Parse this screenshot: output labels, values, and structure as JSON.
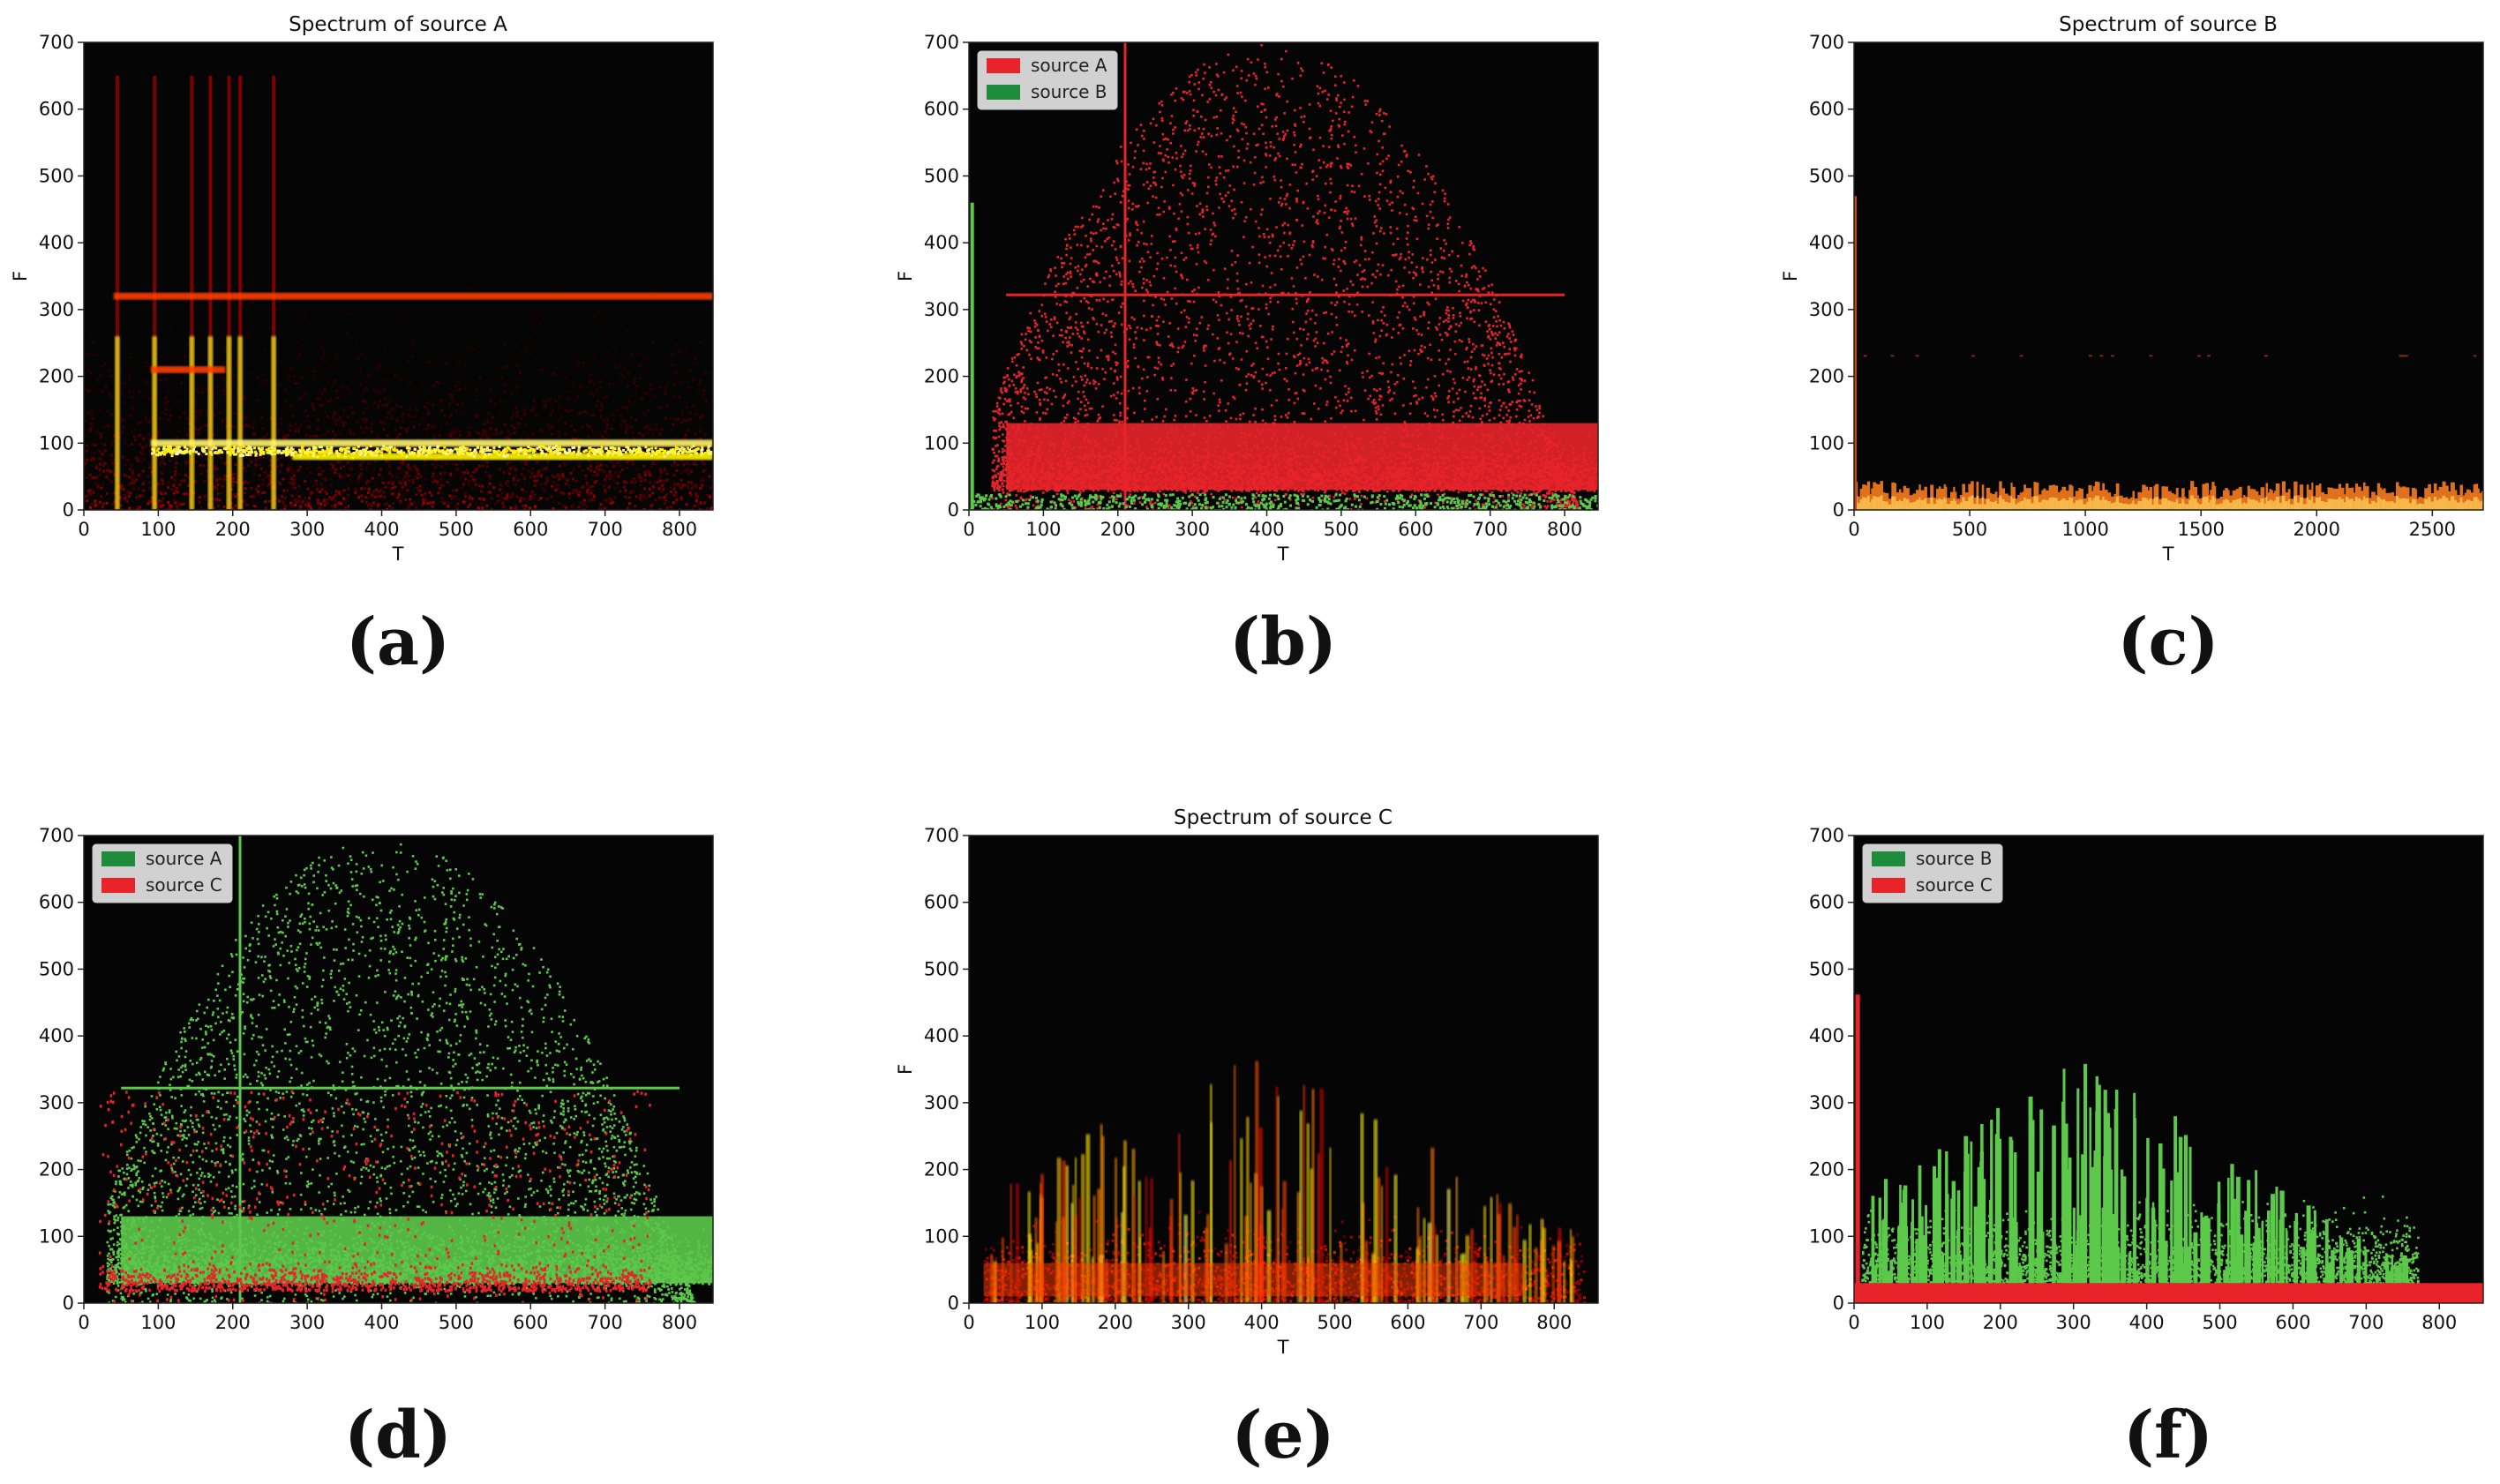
{
  "chart_data": [
    {
      "panel": "(a)",
      "type": "heatmap",
      "title": "Spectrum of source A",
      "xlabel": "T",
      "ylabel": "F",
      "xlim": [
        0,
        845
      ],
      "ylim": [
        0,
        700
      ],
      "xticks": [
        0,
        100,
        200,
        300,
        400,
        500,
        600,
        700,
        800
      ],
      "yticks": [
        0,
        100,
        200,
        300,
        400,
        500,
        600,
        700
      ],
      "colormap": "hot",
      "features": {
        "bands": [
          {
            "y": 100,
            "x_from": 90,
            "x_to": 845,
            "intensity": 0.9
          },
          {
            "y": 80,
            "x_from": 280,
            "x_to": 845,
            "intensity": 0.75
          },
          {
            "y": 320,
            "x_from": 40,
            "x_to": 845,
            "intensity": 0.45
          },
          {
            "y": 210,
            "x_from": 90,
            "x_to": 190,
            "intensity": 0.45
          }
        ],
        "vertical_lines": [
          45,
          95,
          145,
          170,
          195,
          210,
          255
        ]
      },
      "legend": []
    },
    {
      "panel": "(b)",
      "type": "scatter",
      "title": "",
      "xlabel": "T",
      "ylabel": "F",
      "xlim": [
        0,
        845
      ],
      "ylim": [
        0,
        700
      ],
      "xticks": [
        0,
        100,
        200,
        300,
        400,
        500,
        600,
        700,
        800
      ],
      "yticks": [
        0,
        100,
        200,
        300,
        400,
        500,
        600,
        700
      ],
      "legend_loc": "upper-left",
      "legend": [
        {
          "label": "source A",
          "color": "#e8242a"
        },
        {
          "label": "source B",
          "color": "#1e8c3a"
        }
      ]
    },
    {
      "panel": "(c)",
      "type": "heatmap",
      "title": "Spectrum of source B",
      "xlabel": "T",
      "ylabel": "F",
      "xlim": [
        0,
        2720
      ],
      "ylim": [
        0,
        700
      ],
      "xticks": [
        0,
        500,
        1000,
        1500,
        2000,
        2500
      ],
      "yticks": [
        0,
        100,
        200,
        300,
        400,
        500,
        600,
        700
      ],
      "colormap": "hot",
      "features": {
        "low_band_top": 30
      },
      "legend": []
    },
    {
      "panel": "(d)",
      "type": "scatter",
      "title": "",
      "xlabel": "",
      "ylabel": "",
      "xlim": [
        0,
        845
      ],
      "ylim": [
        0,
        700
      ],
      "xticks": [
        0,
        100,
        200,
        300,
        400,
        500,
        600,
        700,
        800
      ],
      "yticks": [
        0,
        100,
        200,
        300,
        400,
        500,
        600,
        700
      ],
      "legend_loc": "upper-left",
      "legend": [
        {
          "label": "source A",
          "color": "#1e8c3a"
        },
        {
          "label": "source C",
          "color": "#e8242a"
        }
      ]
    },
    {
      "panel": "(e)",
      "type": "heatmap",
      "title": "Spectrum of source C",
      "xlabel": "T",
      "ylabel": "F",
      "xlim": [
        0,
        860
      ],
      "ylim": [
        0,
        700
      ],
      "xticks": [
        0,
        100,
        200,
        300,
        400,
        500,
        600,
        700,
        800
      ],
      "yticks": [
        0,
        100,
        200,
        300,
        400,
        500,
        600,
        700
      ],
      "colormap": "hot",
      "legend": []
    },
    {
      "panel": "(f)",
      "type": "scatter",
      "title": "",
      "xlabel": "",
      "ylabel": "",
      "xlim": [
        0,
        860
      ],
      "ylim": [
        0,
        700
      ],
      "xticks": [
        0,
        100,
        200,
        300,
        400,
        500,
        600,
        700,
        800
      ],
      "yticks": [
        0,
        100,
        200,
        300,
        400,
        500,
        600,
        700
      ],
      "legend_loc": "upper-left",
      "legend": [
        {
          "label": "source B",
          "color": "#1e8c3a"
        },
        {
          "label": "source C",
          "color": "#e8242a"
        }
      ]
    }
  ],
  "captions": [
    "(a)",
    "(b)",
    "(c)",
    "(d)",
    "(e)",
    "(f)"
  ],
  "colors": {
    "plot_background": "#050505",
    "red": "#e8242a",
    "green": "#5cc94a",
    "legend_green": "#1e8c3a"
  }
}
